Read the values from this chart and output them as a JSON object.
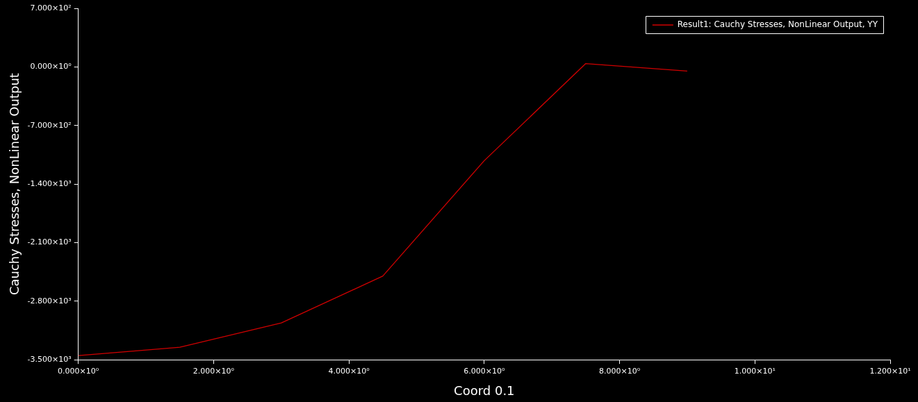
{
  "chart_data": {
    "type": "line",
    "xlabel": "Coord 0.1",
    "ylabel": "Cauchy Stresses, NonLinear Output",
    "x": [
      0,
      1.5,
      3,
      4.5,
      6,
      7.5,
      9
    ],
    "series": [
      {
        "name": "Result1: Cauchy Stresses, NonLinear Output, YY",
        "color": "#d00000",
        "values": [
          -3450,
          -3350,
          -3060,
          -2500,
          -1120,
          40,
          -50
        ]
      }
    ],
    "xlim": [
      0,
      12
    ],
    "xticks": [
      {
        "value": 0,
        "label": "0.000×10⁰"
      },
      {
        "value": 2,
        "label": "2.000×10⁰"
      },
      {
        "value": 4,
        "label": "4.000×10⁰"
      },
      {
        "value": 6,
        "label": "6.000×10⁰"
      },
      {
        "value": 8,
        "label": "8.000×10⁰"
      },
      {
        "value": 10,
        "label": "1.000×10¹"
      },
      {
        "value": 12,
        "label": "1.200×10¹"
      }
    ],
    "ylim": [
      -3500,
      700
    ],
    "yticks": [
      {
        "value": -3500,
        "label": "-3.500×10³"
      },
      {
        "value": -2800,
        "label": "-2.800×10³"
      },
      {
        "value": -2100,
        "label": "-2.100×10³"
      },
      {
        "value": -1400,
        "label": "-1.400×10³"
      },
      {
        "value": -700,
        "label": "-7.000×10²"
      },
      {
        "value": 0,
        "label": "0.000×10⁰"
      },
      {
        "value": 700,
        "label": "7.000×10²"
      }
    ],
    "legend": "top right",
    "marker": "none",
    "line_style": "solid"
  }
}
